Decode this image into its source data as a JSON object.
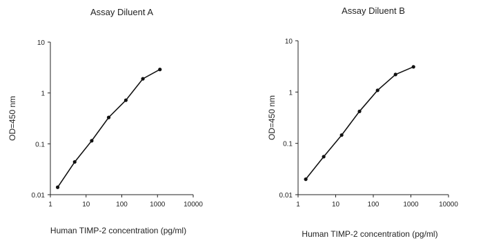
{
  "chart_data": [
    {
      "type": "line",
      "title": "Assay Diluent A",
      "xlabel": "Human TIMP-2 concentration (pg/ml)",
      "ylabel": "OD=450 nm",
      "xscale": "log",
      "yscale": "log",
      "xlim": [
        1,
        10000
      ],
      "ylim": [
        0.01,
        10
      ],
      "xticks": [
        "1",
        "10",
        "100",
        "1000",
        "10000"
      ],
      "yticks": [
        "10",
        "1",
        "0.1",
        "0.01"
      ],
      "grid": false,
      "series": [
        {
          "x": [
            1.6,
            4.8,
            14.4,
            43,
            130,
            390,
            1170
          ],
          "y": [
            0.014,
            0.044,
            0.115,
            0.33,
            0.72,
            1.9,
            2.9
          ]
        }
      ]
    },
    {
      "type": "line",
      "title": "Assay Diluent B",
      "xlabel": "Human TIMP-2 concentration (pg/ml)",
      "ylabel": "OD=450 nm",
      "xscale": "log",
      "yscale": "log",
      "xlim": [
        1,
        10000
      ],
      "ylim": [
        0.01,
        10
      ],
      "xticks": [
        "1",
        "10",
        "100",
        "1000",
        "10000"
      ],
      "yticks": [
        "10",
        "1",
        "0.1",
        "0.01"
      ],
      "grid": false,
      "series": [
        {
          "x": [
            1.6,
            4.8,
            14.4,
            43,
            130,
            390,
            1170
          ],
          "y": [
            0.02,
            0.055,
            0.145,
            0.42,
            1.08,
            2.2,
            3.1
          ]
        }
      ]
    }
  ]
}
